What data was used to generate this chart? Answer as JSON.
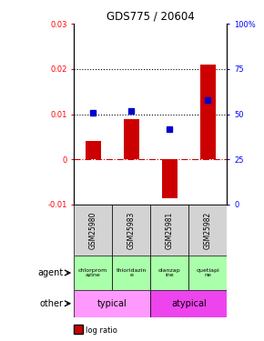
{
  "title": "GDS775 / 20604",
  "samples": [
    "GSM25980",
    "GSM25983",
    "GSM25981",
    "GSM25982"
  ],
  "log_ratio": [
    0.004,
    0.009,
    -0.0085,
    0.021
  ],
  "percentile_rank": [
    51,
    52,
    42,
    58
  ],
  "ylim_left": [
    -0.01,
    0.03
  ],
  "ylim_right": [
    0,
    100
  ],
  "yticks_left": [
    -0.01,
    0.0,
    0.01,
    0.02,
    0.03
  ],
  "yticks_right": [
    0,
    25,
    50,
    75,
    100
  ],
  "ytick_labels_left": [
    "-0.01",
    "0",
    "0.01",
    "0.02",
    "0.03"
  ],
  "ytick_labels_right": [
    "0",
    "25",
    "50",
    "75",
    "100%"
  ],
  "hlines": [
    0.01,
    0.02
  ],
  "agent_labels": [
    "chlorprom\nazine",
    "thioridazin\ne",
    "olanzap\nine",
    "quetiapi\nne"
  ],
  "bar_color": "#cc0000",
  "dot_color": "#0000cc",
  "zero_line_color": "#cc0000",
  "typical_color": "#ff99ff",
  "atypical_color": "#ee44ee",
  "agent_green": "#aaffaa",
  "gray_color": "#d3d3d3"
}
